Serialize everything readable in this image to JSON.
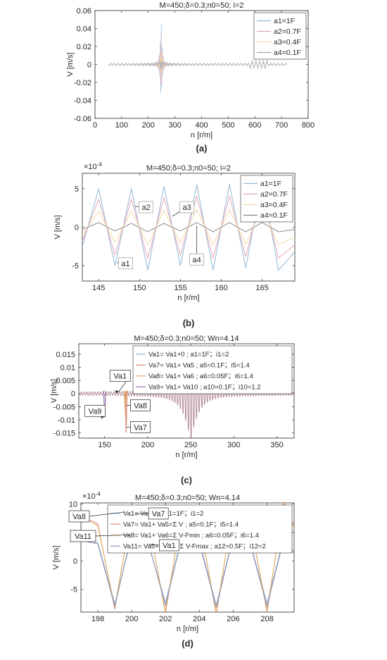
{
  "chart_data": [
    {
      "type": "line",
      "panel_label": "(a)",
      "title": "M=450;δ=0.3;n0=50; i=2",
      "xlabel": "n [r/m]",
      "ylabel": "V [m/s]",
      "xlim": [
        0,
        800
      ],
      "ylim": [
        -0.06,
        0.06
      ],
      "xticks": [
        "0",
        "100",
        "200",
        "300",
        "400",
        "500",
        "600",
        "700",
        "800"
      ],
      "yticks": [
        "0.06",
        "0.04",
        "0.02",
        "0",
        "-0.02",
        "-0.04",
        "-0.06"
      ],
      "legend_position": "top-right",
      "series": [
        {
          "name": "a1=1F",
          "color": "#8fb7d6",
          "peak": 0.049,
          "trough": -0.043
        },
        {
          "name": "a2=0.7F",
          "color": "#e6a6b4",
          "peak": 0.034,
          "trough": -0.03
        },
        {
          "name": "a3=0.4F",
          "color": "#f0d9a8",
          "peak": 0.02,
          "trough": -0.017
        },
        {
          "name": "a4=0.1F",
          "color": "#9aa8bf",
          "peak": 0.005,
          "trough": -0.004
        }
      ],
      "x_range": [
        50,
        720
      ],
      "resonance_x": 248
    },
    {
      "type": "line",
      "panel_label": "(b)",
      "title": "M=450;δ=0.3;n0=50; i=2",
      "xlabel": "n [r/m]",
      "ylabel": "V [m/s]",
      "exponent_label": "×10",
      "exponent_power": "-4",
      "xlim": [
        143,
        169
      ],
      "ylim": [
        -7,
        7
      ],
      "xticks": [
        "145",
        "150",
        "155",
        "160",
        "165"
      ],
      "yticks": [
        "5",
        "0",
        "-5"
      ],
      "legend_position": "top-right",
      "annotations": [
        "a1",
        "a2",
        "a3",
        "a4"
      ],
      "x": [
        143,
        145,
        147,
        149,
        151,
        153,
        155,
        157,
        159,
        161,
        163,
        165,
        167,
        169
      ],
      "series": [
        {
          "name": "a1=1F",
          "color": "#8fb7d6",
          "values": [
            -2.5,
            5.0,
            -5.0,
            5.0,
            -5.6,
            5.3,
            -5.0,
            5.5,
            -5.6,
            5.6,
            -5.3,
            6.2,
            -5.6,
            -3.2
          ]
        },
        {
          "name": "a2=0.7F",
          "color": "#e6a6b4",
          "values": [
            -1.8,
            3.6,
            -3.6,
            3.6,
            -4.0,
            3.8,
            -3.6,
            4.0,
            -4.0,
            4.0,
            -3.8,
            4.5,
            -4.0,
            -2.3
          ]
        },
        {
          "name": "a3=0.4F",
          "color": "#f0d9a8",
          "values": [
            -1.0,
            2.1,
            -2.0,
            2.1,
            -2.3,
            2.2,
            -2.0,
            2.3,
            -2.3,
            2.3,
            -2.2,
            2.6,
            -2.3,
            -1.3
          ]
        },
        {
          "name": "a4=0.1F",
          "color": "#8a8a8a",
          "values": [
            -0.3,
            0.6,
            -0.5,
            0.5,
            -0.6,
            0.5,
            -0.5,
            0.6,
            -0.6,
            0.6,
            -0.6,
            0.6,
            -0.6,
            -0.3
          ]
        }
      ]
    },
    {
      "type": "line",
      "panel_label": "(c)",
      "title": "M=450;δ=0.3;n0=50; Wn=4.14",
      "xlabel": "n [r/m]",
      "ylabel": "V [m/s]",
      "xlim": [
        120,
        370
      ],
      "ylim": [
        -0.017,
        0.019
      ],
      "xticks": [
        "150",
        "200",
        "250",
        "300",
        "350"
      ],
      "yticks": [
        "0.015",
        "0.01",
        "0.005",
        "0",
        "-0.005",
        "-0.01",
        "-0.015"
      ],
      "legend_position": "top-right",
      "annotations": [
        "Va1",
        "Va9",
        "Va8",
        "Va7"
      ],
      "series": [
        {
          "name": "Va1= Va1+0 ; a1=1F；i1=2",
          "color": "#8fb7d6"
        },
        {
          "name": "Va7= Va1+ Va5 ; a5=0.1F；i5=1.4",
          "color": "#e08a7a"
        },
        {
          "name": "Va8= Va1+ Va6 ; a6=0.05F；i6=1.4",
          "color": "#e0b060"
        },
        {
          "name": "Va9= Va1+ Va10 ; a10=0.1F；i10=1.2",
          "color": "#9a6fa8"
        }
      ],
      "spikes": [
        {
          "label": "Va9",
          "x": 150,
          "value": -0.009
        },
        {
          "label": "Va8",
          "x": 174,
          "value": -0.008
        },
        {
          "label": "Va7",
          "x": 175,
          "value": -0.015
        }
      ],
      "resonance_x": 250
    },
    {
      "type": "line",
      "panel_label": "(d)",
      "title": "M=450;δ=0.3;n0=50; Wn=4.14",
      "xlabel": "n [r/m]",
      "ylabel": "V [m/s]",
      "exponent_label": "×10",
      "exponent_power": "-4",
      "xlim": [
        197,
        209.6
      ],
      "ylim": [
        -9,
        10.2
      ],
      "xticks": [
        "198",
        "200",
        "202",
        "204",
        "206",
        "208"
      ],
      "yticks": [
        "10",
        "5",
        "0",
        "-5"
      ],
      "legend_position": "top-right",
      "annotations": [
        "Va8",
        "Va7",
        "Va11",
        "Va1"
      ],
      "x": [
        197,
        198,
        199,
        200,
        201,
        202,
        203,
        204,
        205,
        206,
        207,
        208,
        209,
        209.6
      ],
      "series": [
        {
          "name": "Va1= Va1+0 ; a1=1F；i1=2",
          "color": "#8fb7d6",
          "values": [
            4.0,
            3.2,
            -7.5,
            4.2,
            2.8,
            -7.3,
            4.8,
            3.5,
            -7.8,
            4.5,
            3.2,
            -7.4,
            4.2,
            1.5
          ]
        },
        {
          "name": "Va7= Va1+ Va5=Σ   V ; a5=0.1F；i5=1.4",
          "color": "#e08a7a",
          "values": [
            8.0,
            6.5,
            -8.5,
            9.0,
            6.8,
            -9.2,
            9.3,
            7.2,
            -9.5,
            9.6,
            7.0,
            -9.0,
            10.5,
            6.0
          ]
        },
        {
          "name": "Va8= Va1+ Va6=Σ   V-Fmin ; a6=0.05F；i6=1.4",
          "color": "#e0b060",
          "values": [
            7.8,
            6.2,
            -8.2,
            8.8,
            6.5,
            -8.9,
            9.0,
            7.0,
            -9.2,
            9.3,
            6.8,
            -8.7,
            10.2,
            5.8
          ]
        },
        {
          "name": "Va11= Va5+ Va12=Σ   V-Fmax ; a12=0.5F；i12=2",
          "color": "#8a8ab0",
          "values": [
            3.6,
            3.0,
            -8.0,
            4.8,
            3.0,
            -7.8,
            4.5,
            3.2,
            -8.2,
            4.2,
            3.0,
            -8.0,
            4.0,
            1.2
          ]
        }
      ]
    }
  ]
}
